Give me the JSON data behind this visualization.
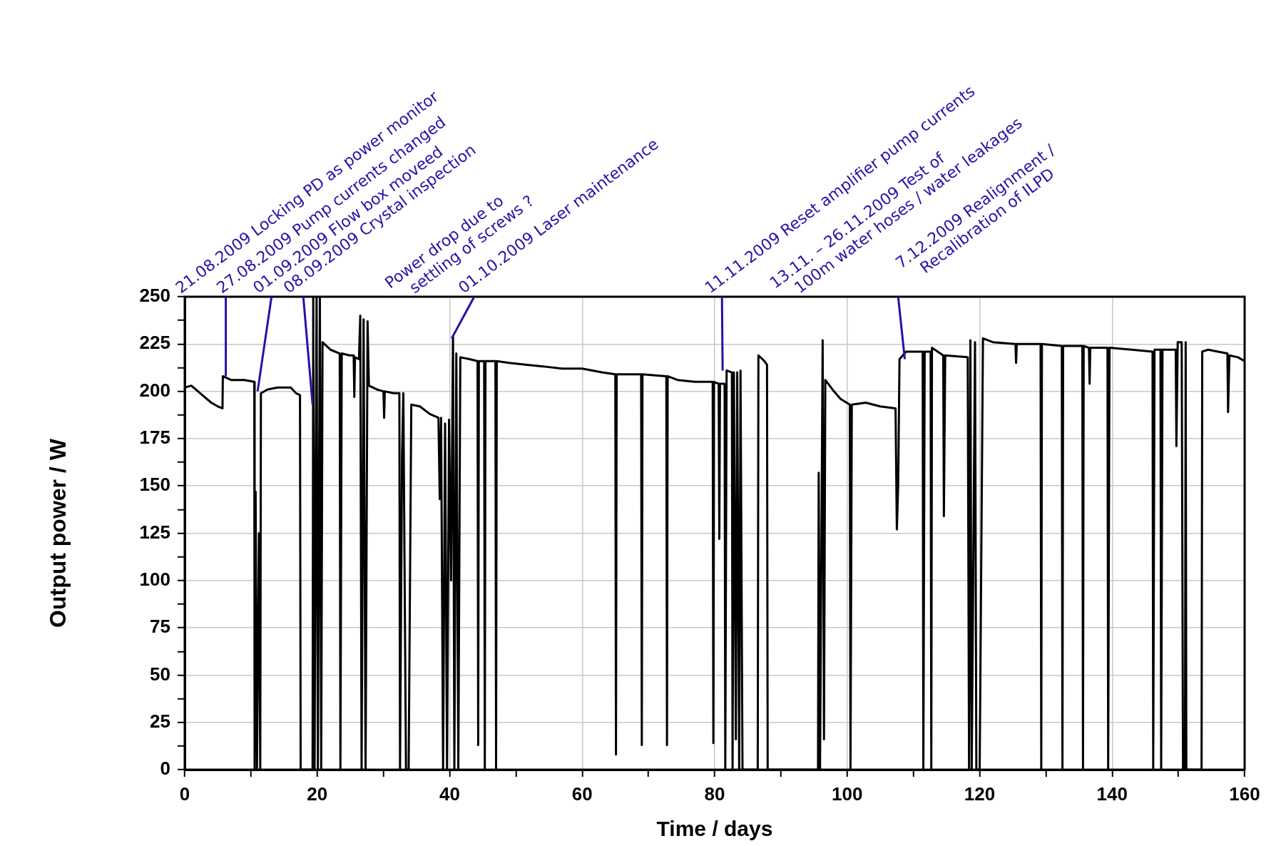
{
  "chart_data": {
    "type": "line",
    "xlabel": "Time / days",
    "ylabel": "Output power / W",
    "x": [
      0,
      1,
      2,
      3,
      4,
      5,
      5.7,
      5.75,
      7,
      9,
      10.5,
      10.55,
      10.7,
      10.9,
      11.2,
      11.4,
      11.5,
      12.5,
      14,
      16,
      16.8,
      17.4,
      17.5,
      19.3,
      19.4,
      19.6,
      19.9,
      20.1,
      20.4,
      20.6,
      20.8,
      22,
      23.4,
      23.5,
      23.7,
      24.9,
      25.5,
      25.6,
      25.7,
      26.3,
      26.5,
      26.7,
      27,
      27.3,
      27.6,
      27.8,
      29,
      30,
      30.1,
      30.2,
      31.5,
      32.4,
      32.5,
      32.8,
      33,
      33.4,
      33.8,
      34.2,
      35.5,
      37,
      38.3,
      38.5,
      38.7,
      39,
      39.3,
      39.6,
      39.9,
      40.2,
      40.5,
      40.7,
      41,
      41.3,
      41.6,
      43,
      44.2,
      44.3,
      44.4,
      45.2,
      45.3,
      45.4,
      46.9,
      47,
      47.1,
      49,
      51.7,
      54.5,
      57,
      60,
      63,
      65,
      65.1,
      65.2,
      68.9,
      69,
      69.1,
      72.7,
      72.8,
      72.9,
      74.4,
      77,
      79.7,
      79.8,
      79.9,
      80.6,
      80.7,
      80.8,
      81.5,
      81.6,
      81.8,
      82.6,
      82.7,
      82.9,
      83.2,
      83.4,
      83.7,
      83.9,
      84.2,
      86.5,
      86.6,
      87.5,
      87.9,
      88,
      95.6,
      95.7,
      95.9,
      96.3,
      96.5,
      96.7,
      98,
      99,
      100.4,
      100.5,
      100.7,
      102.8,
      105,
      107.3,
      107.5,
      107.7,
      107.9,
      108.9,
      111.4,
      111.5,
      111.7,
      112.6,
      112.7,
      112.8,
      114.5,
      114.6,
      114.8,
      118.2,
      118.4,
      118.6,
      118.8,
      119.3,
      119.5,
      120,
      120.5,
      122,
      125.4,
      125.5,
      125.6,
      129.2,
      129.3,
      129.4,
      132.4,
      132.5,
      132.6,
      135.5,
      135.6,
      135.7,
      136.5,
      136.6,
      136.7,
      139.3,
      139.4,
      139.6,
      143,
      146.1,
      146.2,
      146.4,
      147.3,
      147.4,
      147.6,
      149.6,
      149.7,
      149.9,
      150.5,
      150.7,
      151,
      151.1,
      151.2,
      153.5,
      153.6,
      154.5,
      156,
      157.4,
      157.5,
      157.7,
      159,
      160
    ],
    "series": [
      {
        "color": "#000000",
        "values": [
          202,
          203,
          200,
          197,
          194,
          192,
          191,
          208,
          206,
          206,
          205,
          0,
          147,
          0,
          125,
          0,
          199,
          201,
          202,
          202,
          199,
          198,
          0,
          0,
          250,
          0,
          250,
          0,
          250,
          0,
          226,
          222,
          220,
          0,
          220,
          219,
          219,
          197,
          218,
          217,
          240,
          0,
          238,
          0,
          237,
          203,
          201,
          200,
          186,
          200,
          199,
          199,
          0,
          165,
          199,
          0,
          0,
          193,
          192,
          188,
          186,
          143,
          186,
          0,
          183,
          0,
          185,
          100,
          229,
          0,
          220,
          0,
          218,
          217,
          216,
          13,
          216,
          216,
          0,
          216,
          216,
          0,
          216,
          215,
          214,
          213,
          212,
          212,
          210,
          209,
          8,
          209,
          209,
          13,
          209,
          208,
          13,
          208,
          206,
          205,
          205,
          14,
          205,
          204,
          122,
          204,
          204,
          0,
          211,
          210,
          0,
          210,
          16,
          210,
          0,
          211,
          0,
          0,
          219,
          216,
          214,
          0,
          0,
          157,
          0,
          227,
          16,
          206,
          200,
          196,
          193,
          0,
          193,
          194,
          192,
          191,
          127,
          150,
          217,
          221,
          221,
          0,
          221,
          221,
          0,
          223,
          219,
          134,
          219,
          218,
          0,
          227,
          0,
          226,
          0,
          0,
          228,
          226,
          225,
          215,
          225,
          225,
          0,
          225,
          224,
          0,
          224,
          224,
          0,
          224,
          223,
          204,
          223,
          223,
          0,
          223,
          222,
          221,
          0,
          222,
          222,
          0,
          222,
          222,
          171,
          226,
          226,
          0,
          0,
          226,
          0,
          0,
          221,
          222,
          221,
          220,
          189,
          219,
          218,
          216
        ]
      }
    ],
    "xlim": [
      0,
      160
    ],
    "ylim": [
      0,
      250
    ],
    "xticks": [
      0,
      {
        "value": 10,
        "label": null
      },
      20,
      {
        "value": 30,
        "label": null
      },
      40,
      {
        "value": 50,
        "label": null
      },
      60,
      {
        "value": 70,
        "label": null
      },
      80,
      {
        "value": 90,
        "label": null
      },
      100,
      {
        "value": 110,
        "label": null
      },
      120,
      {
        "value": 130,
        "label": null
      },
      140,
      {
        "value": 150,
        "label": null
      },
      160
    ],
    "yticks": [
      0,
      {
        "value": 12.5,
        "label": null
      },
      25,
      {
        "value": 37.5,
        "label": null
      },
      50,
      {
        "value": 62.5,
        "label": null
      },
      75,
      {
        "value": 87.5,
        "label": null
      },
      100,
      {
        "value": 112.5,
        "label": null
      },
      125,
      {
        "value": 137.5,
        "label": null
      },
      150,
      {
        "value": 162.5,
        "label": null
      },
      175,
      {
        "value": 187.5,
        "label": null
      },
      200,
      {
        "value": 212.5,
        "label": null
      },
      225,
      {
        "value": 237.5,
        "label": null
      },
      250
    ],
    "grid": true,
    "legend": false,
    "marker": "none",
    "line_style": "solid",
    "annotations": [
      {
        "text": "21.08.2009 Locking PD as power monitor",
        "x": 6.2,
        "y": 208
      },
      {
        "text": "27.08.2009 Pump currents changed",
        "x": 11,
        "y": 200
      },
      {
        "text": "01.09.2009 Flow box moveed",
        "x": 19.3,
        "y": 193
      },
      "08.09.2009 Crystal inspection",
      "Power drop due to\nsettling of screws ?",
      {
        "text": "01.10.2009 Laser maintenance",
        "x": 40.3,
        "y": 228
      },
      {
        "text": "11.11.2009 Reset amplifier pump currents",
        "x": 81.2,
        "y": 211
      },
      "13.11. – 26.11.2009 Test of\n100m water hoses / water leakages",
      {
        "text": "7.12.2009 Realignment /\nRecalibration of ILPD",
        "x": 108.7,
        "y": 217
      }
    ]
  }
}
